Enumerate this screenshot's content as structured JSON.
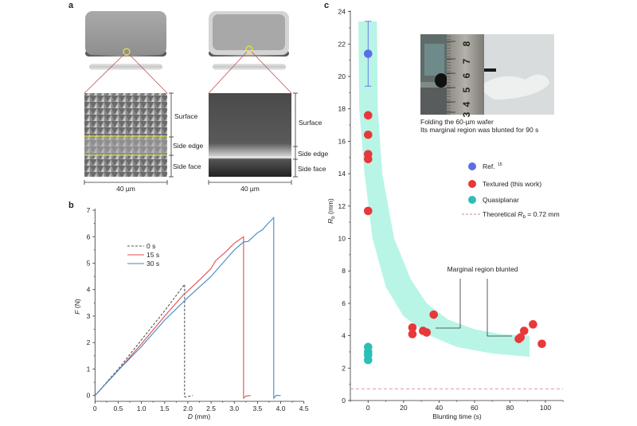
{
  "panel_labels": {
    "a": "a",
    "b": "b",
    "c": "c"
  },
  "panel_a": {
    "textured": {
      "layers": [
        "Surface",
        "Side edge",
        "Side face"
      ],
      "scale_bar": "40 µm"
    },
    "quasiplanar": {
      "layers": [
        "Surface",
        "Side edge",
        "Side face"
      ],
      "scale_bar": "40 µm"
    },
    "highlight_color": "#e8e84a",
    "zoom_line_color": "#c0504d"
  },
  "chart_data": [
    {
      "panel": "b",
      "type": "line",
      "xlabel": "D (mm)",
      "xlabel_symbol": "D",
      "xlabel_unit": " (mm)",
      "ylabel_symbol": "F",
      "ylabel_unit": " (N)",
      "xlim": [
        0,
        4.5
      ],
      "ylim": [
        -0.2,
        7.1
      ],
      "xticks": [
        "0",
        "0.5",
        "1.0",
        "1.5",
        "2.0",
        "2.5",
        "3.0",
        "3.5",
        "4.0",
        "4.5"
      ],
      "yticks": [
        "0",
        "1",
        "2",
        "3",
        "4",
        "5",
        "6",
        "7"
      ],
      "grid": false,
      "legend_position": "top-left",
      "series": [
        {
          "name": "0 s",
          "color": "#555555",
          "dash": true,
          "x": [
            0,
            0.5,
            1.0,
            1.5,
            1.93,
            1.93,
            1.97,
            2.1
          ],
          "y": [
            0,
            1.0,
            2.1,
            3.2,
            4.2,
            -0.05,
            -0.05,
            0
          ]
        },
        {
          "name": "15 s",
          "color": "#e05050",
          "dash": false,
          "x": [
            0,
            0.5,
            1.0,
            1.5,
            1.9,
            2.0,
            2.3,
            2.5,
            2.6,
            2.8,
            3.0,
            3.2,
            3.2,
            3.25,
            3.35
          ],
          "y": [
            0,
            0.95,
            1.95,
            3.0,
            3.8,
            3.95,
            4.45,
            4.8,
            5.1,
            5.4,
            5.75,
            6.0,
            -0.1,
            -0.02,
            0
          ]
        },
        {
          "name": "30 s",
          "color": "#3f8ac4",
          "dash": false,
          "x": [
            0,
            0.5,
            1.0,
            1.5,
            2.0,
            2.5,
            3.0,
            3.2,
            3.3,
            3.5,
            3.6,
            3.7,
            3.85,
            3.85,
            3.9,
            4.0
          ],
          "y": [
            0,
            0.95,
            1.85,
            2.85,
            3.7,
            4.5,
            5.5,
            5.8,
            5.82,
            6.15,
            6.25,
            6.45,
            6.72,
            -0.1,
            0,
            0
          ]
        }
      ]
    },
    {
      "panel": "c",
      "type": "scatter",
      "xlabel": "Blunting time (s)",
      "ylabel_symbol": "R",
      "ylabel_subscript": "b",
      "ylabel_unit": " (mm)",
      "xlim": [
        -10,
        110
      ],
      "ylim": [
        0,
        24
      ],
      "xticks": [
        "0",
        "20",
        "40",
        "60",
        "80",
        "100"
      ],
      "yticks": [
        "0",
        "2",
        "4",
        "6",
        "8",
        "10",
        "12",
        "14",
        "16",
        "18",
        "20",
        "22",
        "24"
      ],
      "grid": false,
      "legend_position": "middle-right",
      "series": [
        {
          "name": "Ref.",
          "superscript": "15",
          "color": "#5b6ee8",
          "points": [
            {
              "x": 0,
              "y": 21.4,
              "err_low": 19.4,
              "err_high": 23.4
            }
          ]
        },
        {
          "name": "Textured (this work)",
          "color": "#e8383a",
          "points": [
            {
              "x": 0,
              "y": 17.6
            },
            {
              "x": 0,
              "y": 16.4
            },
            {
              "x": 0,
              "y": 15.2
            },
            {
              "x": 0,
              "y": 14.9
            },
            {
              "x": 0,
              "y": 11.7
            },
            {
              "x": 25,
              "y": 4.5
            },
            {
              "x": 25,
              "y": 4.1
            },
            {
              "x": 31,
              "y": 4.3
            },
            {
              "x": 33,
              "y": 4.2
            },
            {
              "x": 37,
              "y": 5.3
            },
            {
              "x": 85,
              "y": 3.8
            },
            {
              "x": 86,
              "y": 3.9
            },
            {
              "x": 88,
              "y": 4.3
            },
            {
              "x": 93,
              "y": 4.7
            },
            {
              "x": 98,
              "y": 3.5
            }
          ]
        },
        {
          "name": "Quasiplanar",
          "color": "#2bbfb5",
          "points": [
            {
              "x": 0,
              "y": 3.3
            },
            {
              "x": 0,
              "y": 3.0
            },
            {
              "x": 0,
              "y": 2.8
            },
            {
              "x": 0,
              "y": 2.5
            }
          ]
        }
      ],
      "reference_line": {
        "y": 0.72,
        "color": "#d9869a",
        "label_prefix": "Theoretical ",
        "label_symbol": "R",
        "label_subscript": "b",
        "label_suffix": " = 0.72 mm"
      },
      "trend_band_color": "#b8f5e6",
      "annotation": "Marginal region blunted",
      "inset": {
        "caption_line1": "Folding the 60-µm wafer",
        "caption_line2": "Its marginal region was blunted for 90 s",
        "ruler_numbers": [
          "3",
          "4",
          "5",
          "6",
          "7",
          "8"
        ]
      }
    }
  ]
}
